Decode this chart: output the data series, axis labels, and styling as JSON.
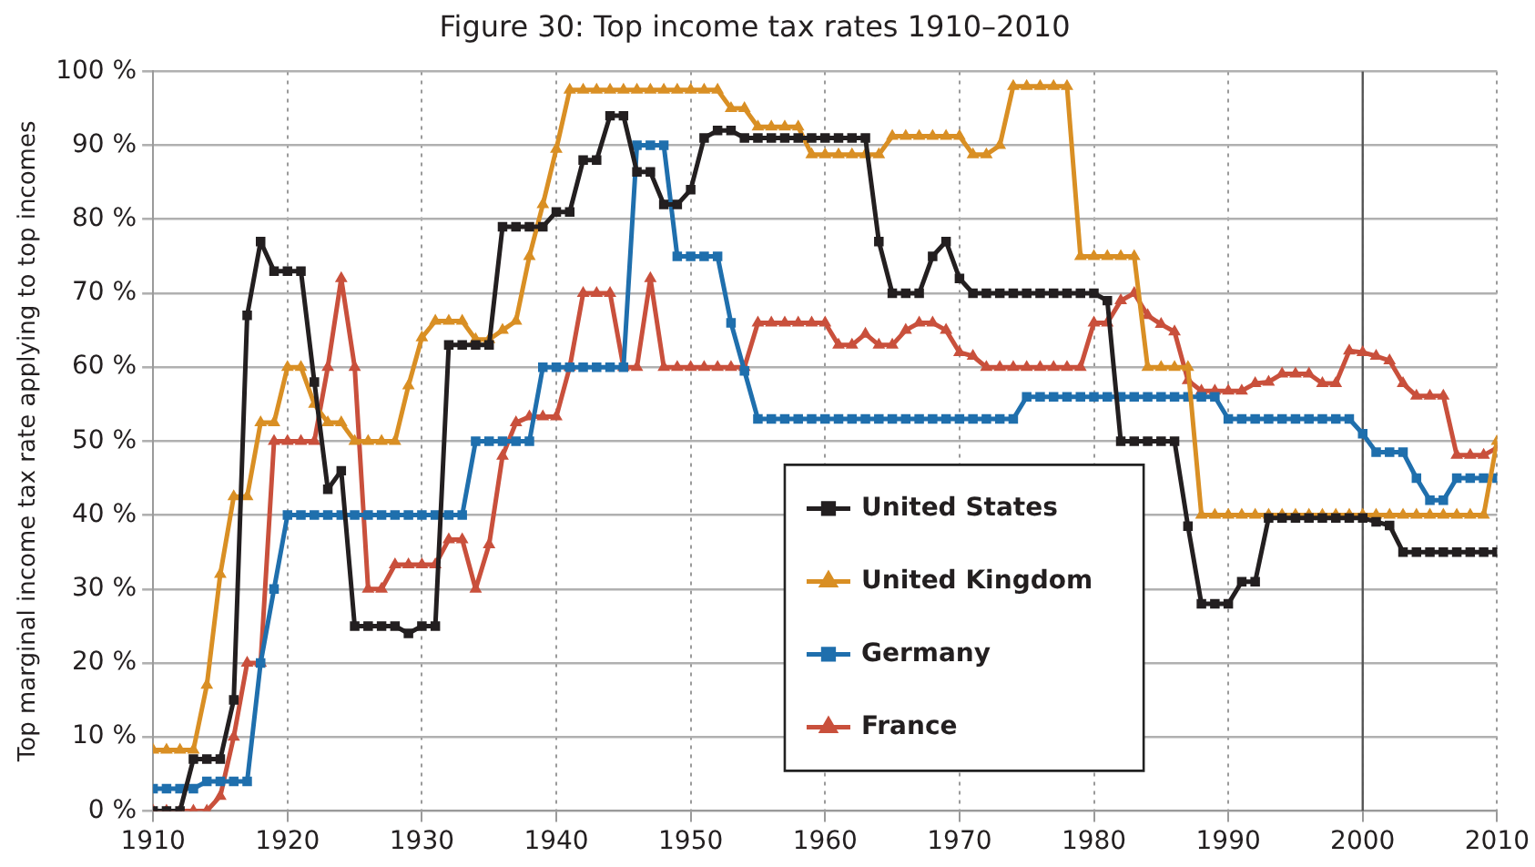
{
  "chart_data": {
    "type": "line",
    "title": "Figure 30: Top income tax rates 1910–2010",
    "ylabel": "Top marginal income tax rate applying to top incomes",
    "x": [
      1910,
      1911,
      1912,
      1913,
      1914,
      1915,
      1916,
      1917,
      1918,
      1919,
      1920,
      1921,
      1922,
      1923,
      1924,
      1925,
      1926,
      1927,
      1928,
      1929,
      1930,
      1931,
      1932,
      1933,
      1934,
      1935,
      1936,
      1937,
      1938,
      1939,
      1940,
      1941,
      1942,
      1943,
      1944,
      1945,
      1946,
      1947,
      1948,
      1949,
      1950,
      1951,
      1952,
      1953,
      1954,
      1955,
      1956,
      1957,
      1958,
      1959,
      1960,
      1961,
      1962,
      1963,
      1964,
      1965,
      1966,
      1967,
      1968,
      1969,
      1970,
      1971,
      1972,
      1973,
      1974,
      1975,
      1976,
      1977,
      1978,
      1979,
      1980,
      1981,
      1982,
      1983,
      1984,
      1985,
      1986,
      1987,
      1988,
      1989,
      1990,
      1991,
      1992,
      1993,
      1994,
      1995,
      1996,
      1997,
      1998,
      1999,
      2000,
      2001,
      2002,
      2003,
      2004,
      2005,
      2006,
      2007,
      2008,
      2009,
      2010
    ],
    "xlim": [
      1910,
      2010
    ],
    "xticks": [
      1910,
      1920,
      1930,
      1940,
      1950,
      1960,
      1970,
      1980,
      1990,
      2000,
      2010
    ],
    "ylim": [
      0,
      100
    ],
    "yticks": [
      {
        "value": 0,
        "label": "0 %"
      },
      {
        "value": 10,
        "label": "10 %"
      },
      {
        "value": 20,
        "label": "20 %"
      },
      {
        "value": 30,
        "label": "30 %"
      },
      {
        "value": 40,
        "label": "40 %"
      },
      {
        "value": 50,
        "label": "50 %"
      },
      {
        "value": 60,
        "label": "60 %"
      },
      {
        "value": 70,
        "label": "70 %"
      },
      {
        "value": 80,
        "label": "80 %"
      },
      {
        "value": 90,
        "label": "90 %"
      },
      {
        "value": 100,
        "label": "100 %"
      }
    ],
    "grid": true,
    "legend": "bottom",
    "line_style": "solid",
    "ref_lines": [
      {
        "axis": "x",
        "value": 2000,
        "color": "#555555"
      }
    ],
    "series": [
      {
        "name": "United States",
        "color": "#231f20",
        "marker": "square",
        "values": [
          0,
          0,
          0,
          7,
          7,
          7,
          15,
          67,
          77,
          73,
          73,
          73,
          58,
          43.5,
          46,
          25,
          25,
          25,
          25,
          24,
          25,
          25,
          63,
          63,
          63,
          63,
          79,
          79,
          79,
          79,
          81,
          81,
          88,
          88,
          94,
          94,
          86.4,
          86.4,
          82,
          82,
          84,
          91,
          92,
          92,
          91,
          91,
          91,
          91,
          91,
          91,
          91,
          91,
          91,
          91,
          77,
          70,
          70,
          70,
          75,
          77,
          72,
          70,
          70,
          70,
          70,
          70,
          70,
          70,
          70,
          70,
          70,
          69,
          50,
          50,
          50,
          50,
          50,
          38.5,
          28,
          28,
          28,
          31,
          31,
          39.6,
          39.6,
          39.6,
          39.6,
          39.6,
          39.6,
          39.6,
          39.6,
          39.1,
          38.6,
          35,
          35,
          35,
          35,
          35,
          35,
          35,
          35
        ]
      },
      {
        "name": "United Kingdom",
        "color": "#d98f24",
        "marker": "triangle",
        "values": [
          8.25,
          8.25,
          8.25,
          8.25,
          17,
          32,
          42.5,
          42.5,
          52.5,
          52.5,
          60,
          60,
          55,
          52.5,
          52.5,
          50,
          50,
          50,
          50,
          57.5,
          64,
          66.25,
          66.25,
          66.25,
          63.75,
          63.75,
          65,
          66.25,
          75,
          82,
          89.5,
          97.5,
          97.5,
          97.5,
          97.5,
          97.5,
          97.5,
          97.5,
          97.5,
          97.5,
          97.5,
          97.5,
          97.5,
          95,
          95,
          92.5,
          92.5,
          92.5,
          92.5,
          88.75,
          88.75,
          88.75,
          88.75,
          88.75,
          88.75,
          91.25,
          91.25,
          91.25,
          91.25,
          91.25,
          91.25,
          88.75,
          88.75,
          90,
          98,
          98,
          98,
          98,
          98,
          75,
          75,
          75,
          75,
          75,
          60,
          60,
          60,
          60,
          40,
          40,
          40,
          40,
          40,
          40,
          40,
          40,
          40,
          40,
          40,
          40,
          40,
          40,
          40,
          40,
          40,
          40,
          40,
          40,
          40,
          40,
          50
        ]
      },
      {
        "name": "Germany",
        "color": "#1f6fad",
        "marker": "square",
        "values": [
          3,
          3,
          3,
          3,
          4,
          4,
          4,
          4,
          20,
          30,
          40,
          40,
          40,
          40,
          40,
          40,
          40,
          40,
          40,
          40,
          40,
          40,
          40,
          40,
          50,
          50,
          50,
          50,
          50,
          60,
          60,
          60,
          60,
          60,
          60,
          60,
          90,
          90,
          90,
          75,
          75,
          75,
          75,
          66,
          59.5,
          53,
          53,
          53,
          53,
          53,
          53,
          53,
          53,
          53,
          53,
          53,
          53,
          53,
          53,
          53,
          53,
          53,
          53,
          53,
          53,
          56,
          56,
          56,
          56,
          56,
          56,
          56,
          56,
          56,
          56,
          56,
          56,
          56,
          56,
          56,
          53,
          53,
          53,
          53,
          53,
          53,
          53,
          53,
          53,
          53,
          51,
          48.5,
          48.5,
          48.5,
          45,
          42,
          42,
          45,
          45,
          45,
          45
        ]
      },
      {
        "name": "France",
        "color": "#c9503c",
        "marker": "triangle",
        "values": [
          0,
          0,
          0,
          0,
          0,
          2,
          10,
          20,
          20,
          50,
          50,
          50,
          50,
          60,
          72,
          60,
          30,
          30,
          33.3,
          33.3,
          33.3,
          33.3,
          36.7,
          36.7,
          30,
          36,
          48,
          52.5,
          53.3,
          53.3,
          53.3,
          60,
          70,
          70,
          70,
          60,
          60,
          72,
          60,
          60,
          60,
          60,
          60,
          60,
          60,
          66,
          66,
          66,
          66,
          66,
          66,
          63,
          63,
          64.5,
          63,
          63,
          65,
          66,
          66,
          65,
          62,
          61.5,
          60,
          60,
          60,
          60,
          60,
          60,
          60,
          60,
          66,
          66,
          69,
          70,
          67,
          65.8,
          64.8,
          58.2,
          56.8,
          56.8,
          56.8,
          56.8,
          57.8,
          58,
          59.1,
          59.1,
          59.1,
          57.8,
          57.8,
          62.2,
          62,
          61.5,
          60.9,
          57.8,
          56.1,
          56.1,
          56.1,
          48.1,
          48.1,
          48.1,
          49.1
        ]
      }
    ]
  }
}
